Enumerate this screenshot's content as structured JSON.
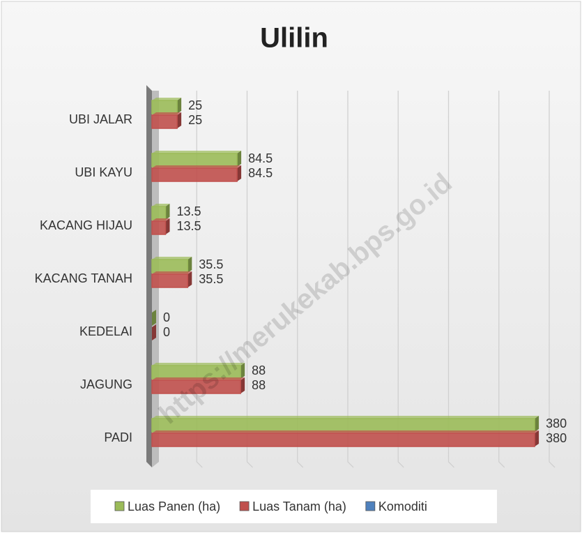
{
  "chart_data": {
    "type": "bar",
    "orientation": "horizontal",
    "title": "Ulilin",
    "watermark": "https://merukekab.bps.go.id",
    "categories": [
      "PADI",
      "JAGUNG",
      "KEDELAI",
      "KACANG TANAH",
      "KACANG HIJAU",
      "UBI KAYU",
      "UBI JALAR"
    ],
    "series": [
      {
        "name": "Luas Panen (ha)",
        "color": "#9bbb59",
        "values": [
          380,
          88,
          0,
          35.5,
          13.5,
          84.5,
          25
        ]
      },
      {
        "name": "Luas Tanam (ha)",
        "color": "#c0504d",
        "values": [
          380,
          88,
          0,
          35.5,
          13.5,
          84.5,
          25
        ]
      },
      {
        "name": "Komoditi",
        "color": "#4f81bd",
        "values": [
          null,
          null,
          null,
          null,
          null,
          null,
          null
        ]
      }
    ],
    "xlim": [
      0,
      400
    ],
    "xticks": [
      0,
      50,
      100,
      150,
      200,
      250,
      300,
      350,
      400
    ],
    "grid": true,
    "legend": "bottom"
  }
}
